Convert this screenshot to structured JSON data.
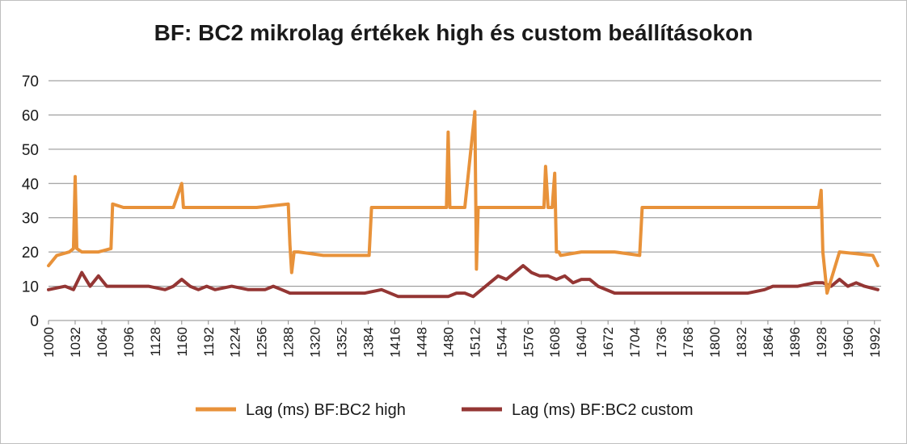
{
  "chart_data": {
    "type": "line",
    "title": "BF: BC2 mikrolag értékek high és custom beállításokon",
    "xlabel": "",
    "ylabel": "",
    "xlim": [
      1000,
      2000
    ],
    "ylim": [
      0,
      70
    ],
    "y_ticks": [
      0,
      10,
      20,
      30,
      40,
      50,
      60,
      70
    ],
    "x_ticks": [
      1000,
      1032,
      1064,
      1096,
      1128,
      1160,
      1192,
      1224,
      1256,
      1288,
      1320,
      1352,
      1384,
      1416,
      1448,
      1480,
      1512,
      1544,
      1576,
      1608,
      1640,
      1672,
      1704,
      1736,
      1768,
      1800,
      1832,
      1864,
      1896,
      1928,
      1960,
      1992
    ],
    "grid": true,
    "legend": "bottom",
    "series": [
      {
        "name": "Lag (ms) BF:BC2 high",
        "color": "#e8923a",
        "x": [
          1000,
          1010,
          1025,
          1030,
          1032,
          1034,
          1040,
          1060,
          1075,
          1077,
          1090,
          1120,
          1150,
          1160,
          1162,
          1170,
          1200,
          1250,
          1288,
          1290,
          1292,
          1295,
          1300,
          1330,
          1360,
          1385,
          1388,
          1400,
          1440,
          1478,
          1480,
          1482,
          1485,
          1500,
          1512,
          1514,
          1516,
          1520,
          1550,
          1595,
          1597,
          1600,
          1605,
          1608,
          1610,
          1613,
          1615,
          1640,
          1680,
          1710,
          1713,
          1730,
          1780,
          1840,
          1900,
          1925,
          1928,
          1930,
          1935,
          1950,
          1990,
          1996
        ],
        "values": [
          16,
          19,
          20,
          21,
          42,
          21,
          20,
          20,
          21,
          34,
          33,
          33,
          33,
          40,
          33,
          33,
          33,
          33,
          34,
          22,
          14,
          20,
          20,
          19,
          19,
          19,
          33,
          33,
          33,
          33,
          55,
          33,
          33,
          33,
          61,
          15,
          33,
          33,
          33,
          33,
          45,
          33,
          33,
          43,
          20,
          20,
          19,
          20,
          20,
          19,
          33,
          33,
          33,
          33,
          33,
          33,
          38,
          20,
          8,
          20,
          19,
          16
        ]
      },
      {
        "name": "Lag (ms) BF:BC2 custom",
        "color": "#943634",
        "x": [
          1000,
          1020,
          1030,
          1040,
          1050,
          1060,
          1070,
          1080,
          1090,
          1100,
          1120,
          1140,
          1150,
          1160,
          1170,
          1180,
          1190,
          1200,
          1220,
          1240,
          1260,
          1270,
          1280,
          1290,
          1300,
          1320,
          1340,
          1360,
          1380,
          1400,
          1420,
          1440,
          1460,
          1480,
          1490,
          1500,
          1510,
          1520,
          1530,
          1540,
          1550,
          1560,
          1570,
          1580,
          1590,
          1600,
          1610,
          1620,
          1630,
          1640,
          1650,
          1660,
          1680,
          1700,
          1720,
          1740,
          1760,
          1780,
          1800,
          1820,
          1840,
          1860,
          1870,
          1880,
          1900,
          1920,
          1930,
          1940,
          1950,
          1960,
          1970,
          1980,
          1996
        ],
        "values": [
          9,
          10,
          9,
          14,
          10,
          13,
          10,
          10,
          10,
          10,
          10,
          9,
          10,
          12,
          10,
          9,
          10,
          9,
          10,
          9,
          9,
          10,
          9,
          8,
          8,
          8,
          8,
          8,
          8,
          9,
          7,
          7,
          7,
          7,
          8,
          8,
          7,
          9,
          11,
          13,
          12,
          14,
          16,
          14,
          13,
          13,
          12,
          13,
          11,
          12,
          12,
          10,
          8,
          8,
          8,
          8,
          8,
          8,
          8,
          8,
          8,
          9,
          10,
          10,
          10,
          11,
          11,
          10,
          12,
          10,
          11,
          10,
          9
        ]
      }
    ]
  }
}
